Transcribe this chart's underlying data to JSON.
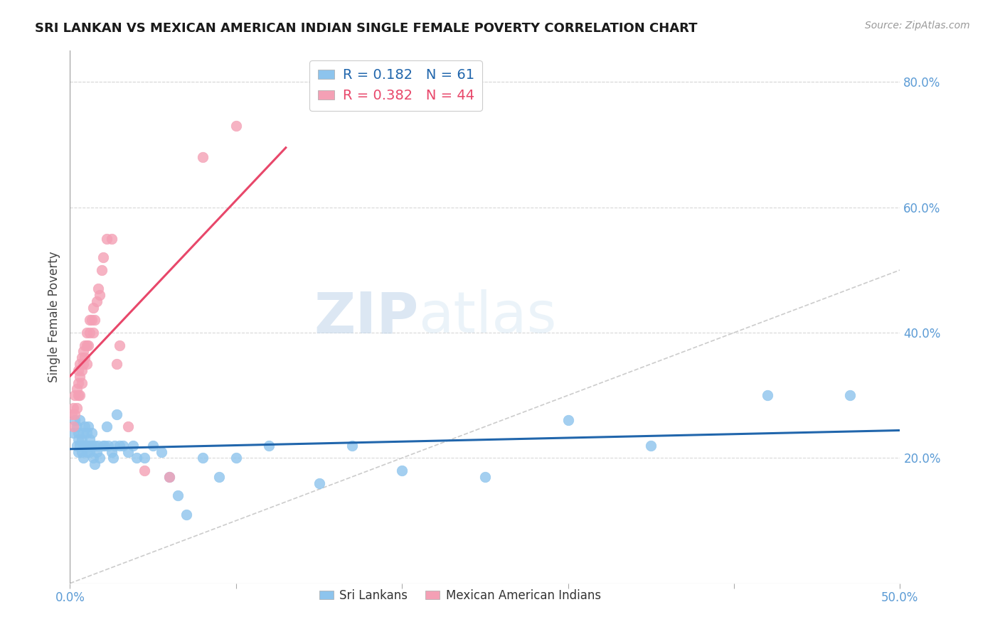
{
  "title": "SRI LANKAN VS MEXICAN AMERICAN INDIAN SINGLE FEMALE POVERTY CORRELATION CHART",
  "source": "Source: ZipAtlas.com",
  "ylabel": "Single Female Poverty",
  "x_range": [
    0.0,
    0.5
  ],
  "y_range": [
    0.0,
    0.85
  ],
  "sri_lanka_R": 0.182,
  "sri_lanka_N": 61,
  "mexican_R": 0.382,
  "mexican_N": 44,
  "sri_lanka_color": "#8dc4ed",
  "mexican_color": "#f4a0b5",
  "sri_lanka_line_color": "#2166ac",
  "mexican_line_color": "#e8476a",
  "diagonal_color": "#cccccc",
  "watermark_zip": "ZIP",
  "watermark_atlas": "atlas",
  "legend_label_sri": "Sri Lankans",
  "legend_label_mex": "Mexican American Indians",
  "sri_x": [
    0.002,
    0.003,
    0.004,
    0.004,
    0.005,
    0.005,
    0.005,
    0.006,
    0.006,
    0.007,
    0.007,
    0.008,
    0.008,
    0.008,
    0.009,
    0.009,
    0.01,
    0.01,
    0.011,
    0.011,
    0.012,
    0.012,
    0.013,
    0.013,
    0.014,
    0.015,
    0.015,
    0.016,
    0.017,
    0.018,
    0.02,
    0.021,
    0.022,
    0.023,
    0.025,
    0.026,
    0.027,
    0.028,
    0.03,
    0.032,
    0.035,
    0.038,
    0.04,
    0.045,
    0.05,
    0.055,
    0.06,
    0.065,
    0.07,
    0.08,
    0.09,
    0.1,
    0.12,
    0.15,
    0.17,
    0.2,
    0.25,
    0.3,
    0.35,
    0.42,
    0.47
  ],
  "sri_y": [
    0.24,
    0.26,
    0.22,
    0.25,
    0.23,
    0.21,
    0.24,
    0.22,
    0.26,
    0.21,
    0.23,
    0.22,
    0.24,
    0.2,
    0.25,
    0.22,
    0.24,
    0.21,
    0.22,
    0.25,
    0.21,
    0.23,
    0.22,
    0.24,
    0.2,
    0.22,
    0.19,
    0.21,
    0.22,
    0.2,
    0.22,
    0.22,
    0.25,
    0.22,
    0.21,
    0.2,
    0.22,
    0.27,
    0.22,
    0.22,
    0.21,
    0.22,
    0.2,
    0.2,
    0.22,
    0.21,
    0.17,
    0.14,
    0.11,
    0.2,
    0.17,
    0.2,
    0.22,
    0.16,
    0.22,
    0.18,
    0.17,
    0.26,
    0.22,
    0.3,
    0.3
  ],
  "mex_x": [
    0.001,
    0.002,
    0.002,
    0.003,
    0.003,
    0.004,
    0.004,
    0.005,
    0.005,
    0.005,
    0.006,
    0.006,
    0.006,
    0.007,
    0.007,
    0.007,
    0.008,
    0.008,
    0.009,
    0.009,
    0.01,
    0.01,
    0.01,
    0.011,
    0.012,
    0.012,
    0.013,
    0.014,
    0.014,
    0.015,
    0.016,
    0.017,
    0.018,
    0.019,
    0.02,
    0.022,
    0.025,
    0.028,
    0.03,
    0.035,
    0.045,
    0.06,
    0.08,
    0.1
  ],
  "mex_y": [
    0.27,
    0.25,
    0.28,
    0.27,
    0.3,
    0.28,
    0.31,
    0.3,
    0.32,
    0.34,
    0.3,
    0.33,
    0.35,
    0.32,
    0.34,
    0.36,
    0.35,
    0.37,
    0.36,
    0.38,
    0.35,
    0.38,
    0.4,
    0.38,
    0.4,
    0.42,
    0.42,
    0.4,
    0.44,
    0.42,
    0.45,
    0.47,
    0.46,
    0.5,
    0.52,
    0.55,
    0.55,
    0.35,
    0.38,
    0.25,
    0.18,
    0.17,
    0.68,
    0.73
  ],
  "x_ticks": [
    0.0,
    0.1,
    0.2,
    0.3,
    0.4,
    0.5
  ],
  "x_tick_labels_show": [
    true,
    false,
    false,
    false,
    false,
    true
  ],
  "y_ticks": [
    0.2,
    0.4,
    0.6,
    0.8
  ]
}
